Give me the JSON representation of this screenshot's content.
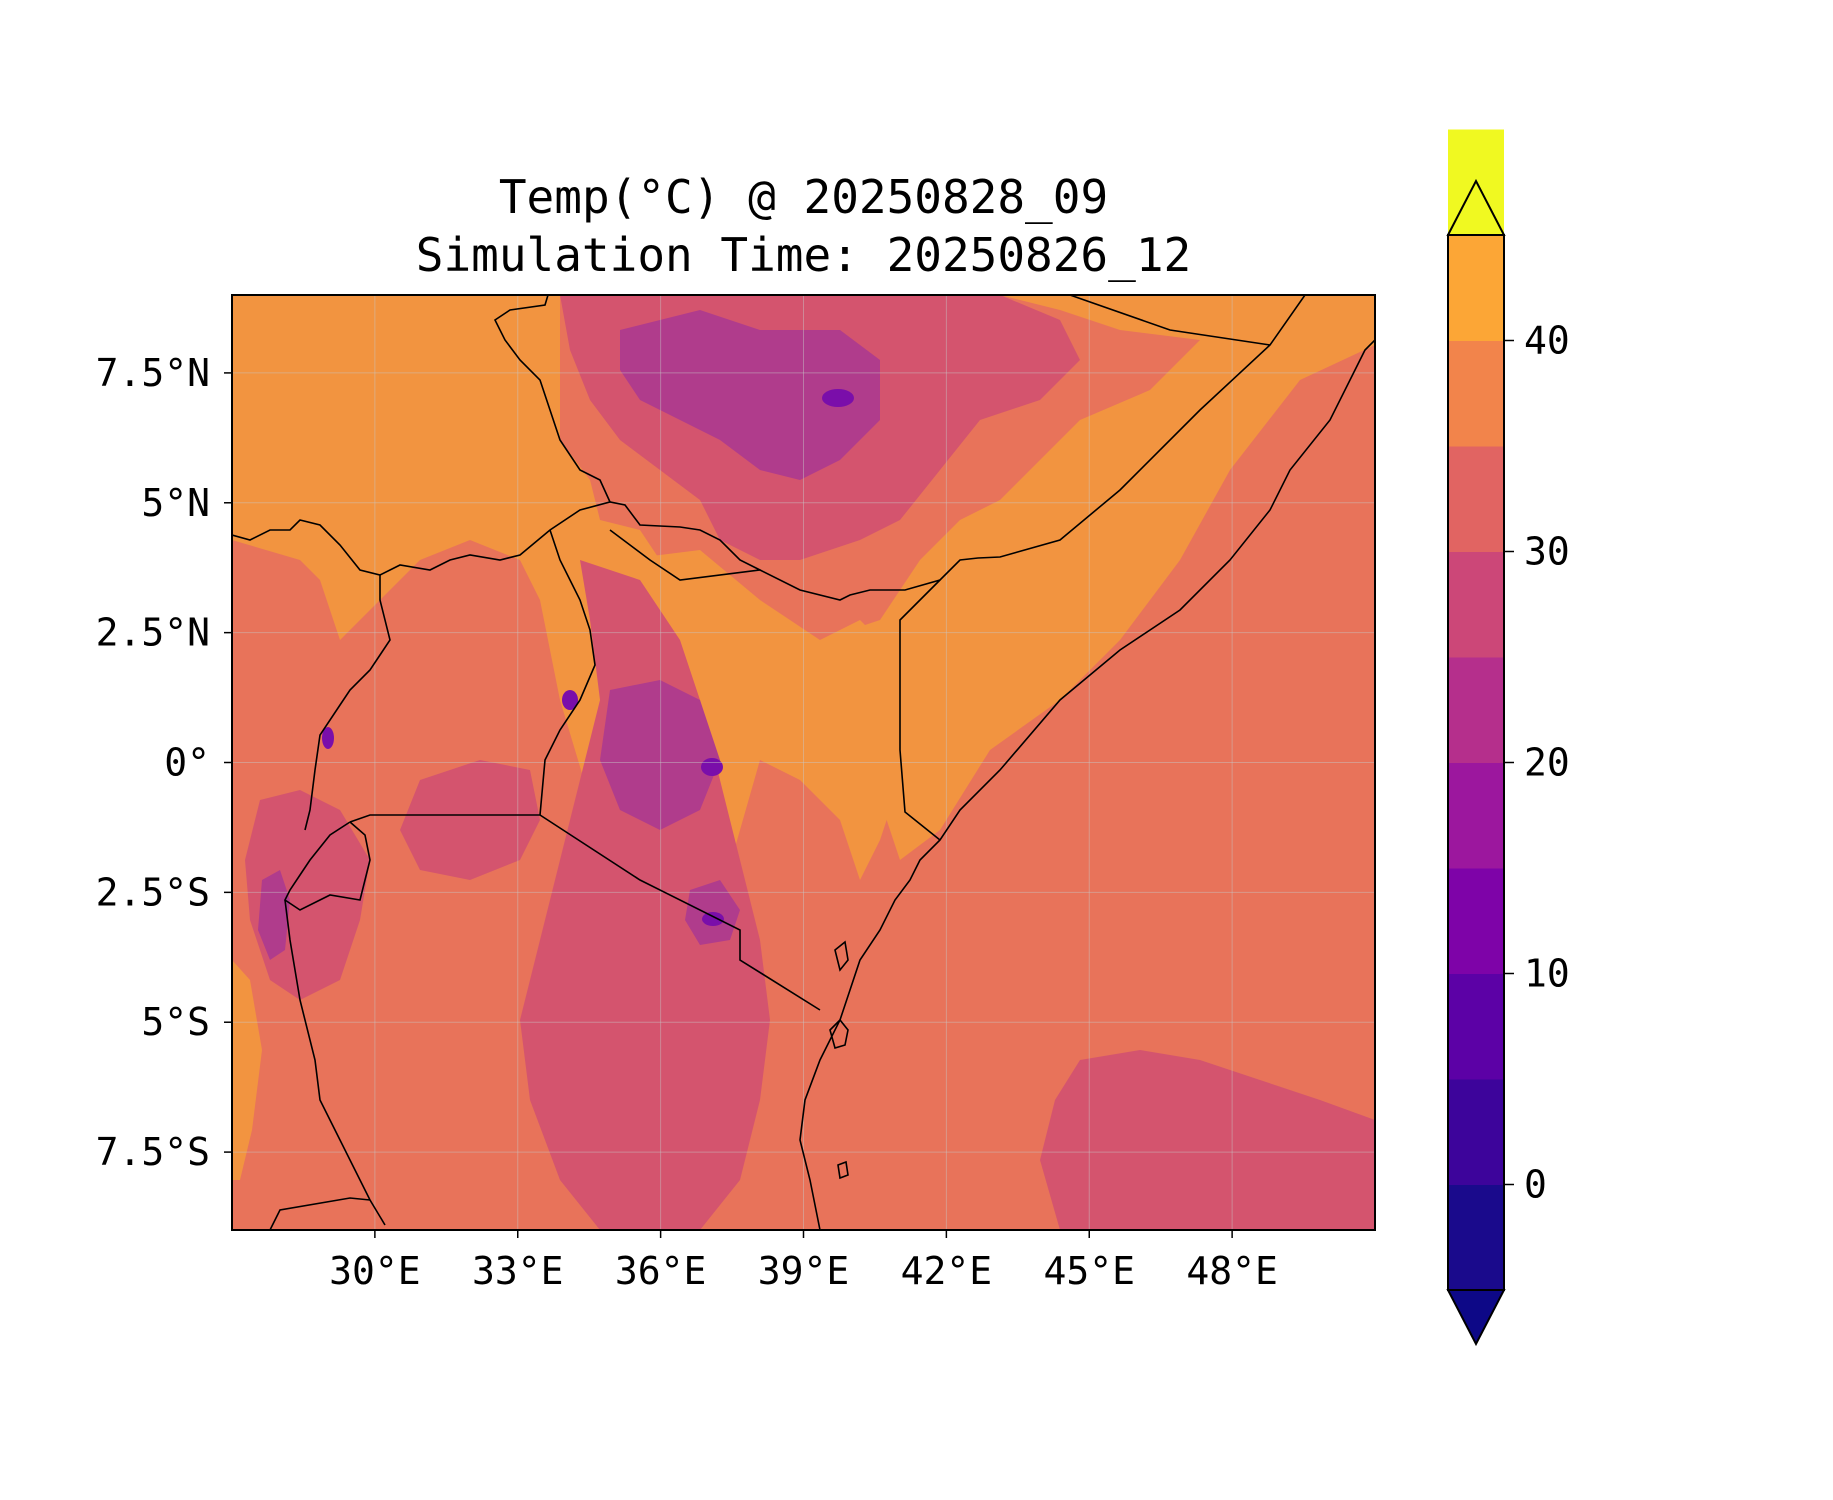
{
  "title": {
    "line1": "Temp(°C) @ 20250828_09",
    "line2": "Simulation Time: 20250826_12"
  },
  "map": {
    "lon_range": [
      27.0,
      51.0
    ],
    "lat_range": [
      -9.0,
      9.0
    ],
    "lon_ticks": [
      {
        "value": 30,
        "label": "30°E"
      },
      {
        "value": 33,
        "label": "33°E"
      },
      {
        "value": 36,
        "label": "36°E"
      },
      {
        "value": 39,
        "label": "39°E"
      },
      {
        "value": 42,
        "label": "42°E"
      },
      {
        "value": 45,
        "label": "45°E"
      },
      {
        "value": 48,
        "label": "48°E"
      }
    ],
    "lat_ticks": [
      {
        "value": 7.5,
        "label": "7.5°N"
      },
      {
        "value": 5,
        "label": "5°N"
      },
      {
        "value": 2.5,
        "label": "2.5°N"
      },
      {
        "value": 0,
        "label": "0°"
      },
      {
        "value": -2.5,
        "label": "2.5°S"
      },
      {
        "value": -5,
        "label": "5°S"
      },
      {
        "value": -7.5,
        "label": "7.5°S"
      }
    ],
    "gridlines": true
  },
  "colorbar": {
    "levels": [
      -5,
      0,
      5,
      10,
      15,
      20,
      25,
      30,
      35,
      40,
      45
    ],
    "colors": [
      "#1a0a8c",
      "#3d049b",
      "#5c01a6",
      "#7e03a8",
      "#9c179e",
      "#b52f8c",
      "#cc4778",
      "#e16462",
      "#f2844b",
      "#fca636",
      "#f0f921"
    ],
    "extend_low": "#0d0887",
    "extend_high": "#f0f921",
    "tick_labels": [
      {
        "value": 0,
        "label": "0"
      },
      {
        "value": 10,
        "label": "10"
      },
      {
        "value": 20,
        "label": "20"
      },
      {
        "value": 30,
        "label": "30"
      },
      {
        "value": 40,
        "label": "40"
      }
    ]
  },
  "field_colors": {
    "base": "#e8735a",
    "warm": "#f29440",
    "cool": "#d4546e",
    "cold": "#b03c8c",
    "coldest": "#7a0eaa"
  }
}
